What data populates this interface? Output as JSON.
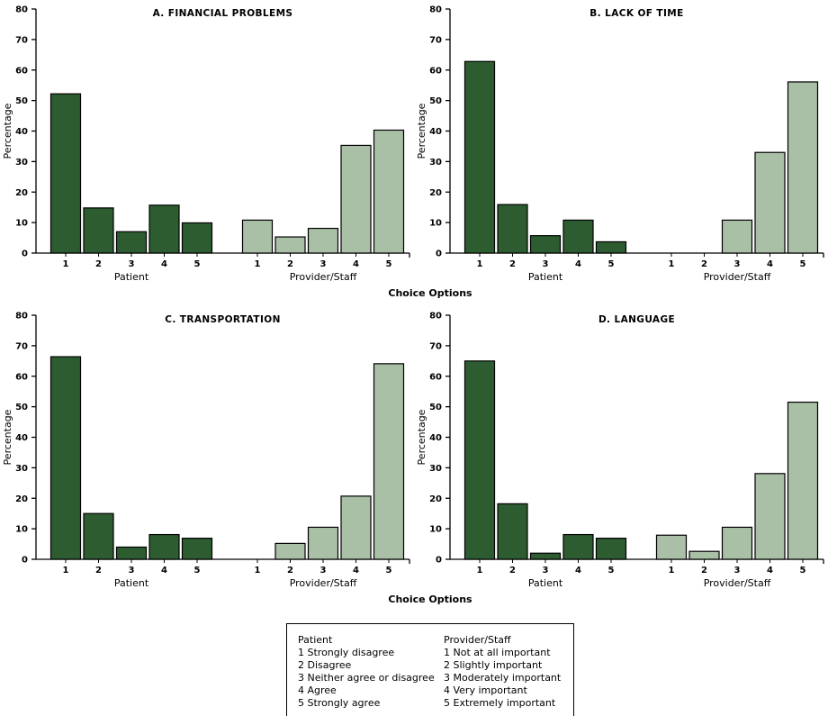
{
  "figure": {
    "ylabel": "Percentage",
    "xlabel": "Choice Options",
    "ylim": [
      0,
      80
    ],
    "ytick_step": 10,
    "colors": [
      "#2d5c30",
      "#a9bfa6"
    ],
    "axis_color": "#000000"
  },
  "chart_data": [
    {
      "type": "bar",
      "title": "A. FINANCIAL PROBLEMS",
      "categories": [
        "1",
        "2",
        "3",
        "4",
        "5"
      ],
      "group_labels": [
        "Patient",
        "Provider/Staff"
      ],
      "series": [
        {
          "name": "Patient",
          "values": [
            52.2,
            14.8,
            7.0,
            15.7,
            9.9
          ]
        },
        {
          "name": "Provider/Staff",
          "values": [
            10.8,
            5.3,
            8.1,
            35.3,
            40.3
          ]
        }
      ],
      "xlabel": "Choice Options",
      "ylabel": "Percentage",
      "ylim": [
        0,
        80
      ],
      "grid": false
    },
    {
      "type": "bar",
      "title": "B. LACK OF TIME",
      "categories": [
        "1",
        "2",
        "3",
        "4",
        "5"
      ],
      "group_labels": [
        "Patient",
        "Provider/Staff"
      ],
      "series": [
        {
          "name": "Patient",
          "values": [
            62.8,
            15.9,
            5.7,
            10.8,
            3.7
          ]
        },
        {
          "name": "Provider/Staff",
          "values": [
            0,
            0,
            10.8,
            33.0,
            56.1
          ]
        }
      ],
      "xlabel": "Choice Options",
      "ylabel": "Percentage",
      "ylim": [
        0,
        80
      ],
      "grid": false
    },
    {
      "type": "bar",
      "title": "C. TRANSPORTATION",
      "categories": [
        "1",
        "2",
        "3",
        "4",
        "5"
      ],
      "group_labels": [
        "Patient",
        "Provider/Staff"
      ],
      "series": [
        {
          "name": "Patient",
          "values": [
            66.4,
            15.0,
            4.0,
            8.1,
            6.9
          ]
        },
        {
          "name": "Provider/Staff",
          "values": [
            0,
            5.2,
            10.5,
            20.7,
            64.1
          ]
        }
      ],
      "xlabel": "Choice Options",
      "ylabel": "Percentage",
      "ylim": [
        0,
        80
      ],
      "grid": false
    },
    {
      "type": "bar",
      "title": "D. LANGUAGE",
      "categories": [
        "1",
        "2",
        "3",
        "4",
        "5"
      ],
      "group_labels": [
        "Patient",
        "Provider/Staff"
      ],
      "series": [
        {
          "name": "Patient",
          "values": [
            65.0,
            18.2,
            2.0,
            8.1,
            6.9
          ]
        },
        {
          "name": "Provider/Staff",
          "values": [
            7.9,
            2.6,
            10.5,
            28.1,
            51.5
          ]
        }
      ],
      "xlabel": "Choice Options",
      "ylabel": "Percentage",
      "ylim": [
        0,
        80
      ],
      "grid": false
    }
  ],
  "legend": {
    "columns": [
      {
        "header": "Patient",
        "items": [
          "1 Strongly disagree",
          "2 Disagree",
          "3 Neither agree or disagree",
          "4 Agree",
          "5 Strongly agree"
        ]
      },
      {
        "header": "Provider/Staff",
        "items": [
          "1 Not at all important",
          "2 Slightly important",
          "3 Moderately important",
          "4 Very important",
          "5 Extremely important"
        ]
      }
    ]
  }
}
